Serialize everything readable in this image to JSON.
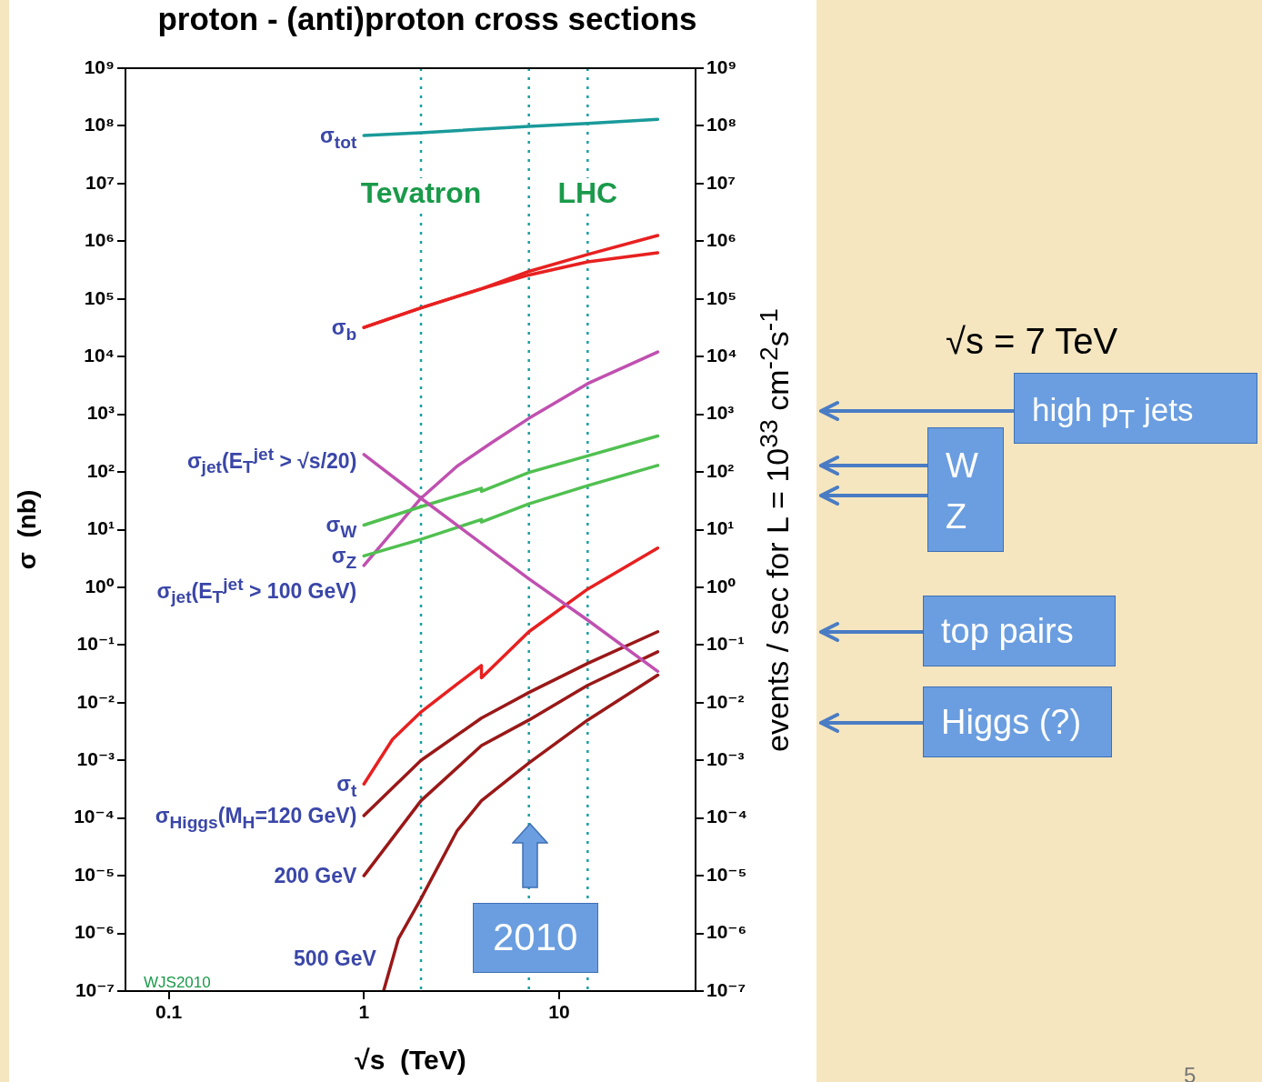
{
  "chart_data": {
    "type": "line",
    "title": "proton - (anti)proton cross sections",
    "xlabel": "√s  (TeV)",
    "ylabel": "σ  (nb)",
    "y2label": "events / sec for L = 10$^{33}$ cm$^{-2}$s$^{-1}$",
    "log": "xy",
    "legend": false,
    "marker": "none",
    "line_style": "solid",
    "xlim": [
      0.06,
      50
    ],
    "xticks": [
      0.1,
      1,
      10
    ],
    "ylim": [
      1e-07,
      1000000000.0
    ],
    "yticks": [
      {
        "value": 1e-07,
        "label": "10⁻⁷"
      },
      {
        "value": 1e-06,
        "label": "10⁻⁶"
      },
      {
        "value": 1e-05,
        "label": "10⁻⁵"
      },
      {
        "value": 0.0001,
        "label": "10⁻⁴"
      },
      {
        "value": 0.001,
        "label": "10⁻³"
      },
      {
        "value": 0.01,
        "label": "10⁻²"
      },
      {
        "value": 0.1,
        "label": "10⁻¹"
      },
      {
        "value": 1,
        "label": "10⁰"
      },
      {
        "value": 10,
        "label": "10¹"
      },
      {
        "value": 100,
        "label": "10²"
      },
      {
        "value": 1000,
        "label": "10³"
      },
      {
        "value": 10000.0,
        "label": "10⁴"
      },
      {
        "value": 100000.0,
        "label": "10⁵"
      },
      {
        "value": 1000000.0,
        "label": "10⁶"
      },
      {
        "value": 10000000.0,
        "label": "10⁷"
      },
      {
        "value": 100000000.0,
        "label": "10⁸"
      },
      {
        "value": 1000000000.0,
        "label": "10⁹"
      }
    ],
    "series": [
      {
        "name": "σ$_{tot}$",
        "color": "#1a9a9a",
        "x": [
          1,
          1.96,
          7,
          14,
          32
        ],
        "values": [
          68000000.0,
          76000000.0,
          98000000.0,
          110000000.0,
          130000000.0
        ]
      },
      {
        "name": "σ$_{b}$",
        "color": "#e82020",
        "x": [
          1,
          1.96,
          4,
          7,
          14,
          32
        ],
        "values": [
          32000.0,
          70000.0,
          150000.0,
          300000.0,
          590000.0,
          1260000.0
        ]
      },
      {
        "color": "#e82020",
        "x": [
          1,
          1.96,
          4,
          7,
          14,
          32
        ],
        "values": [
          32000.0,
          70000.0,
          150000.0,
          260000.0,
          440000.0,
          630000.0
        ]
      },
      {
        "name": "σ$_{jet}$(E$_{T}$$^{jet}$ > √s/20)",
        "color": "#c050b0",
        "x": [
          1,
          1.96,
          7,
          14,
          32
        ],
        "values": [
          200,
          35,
          1.4,
          0.27,
          0.035
        ]
      },
      {
        "name": "σ$_{W}$",
        "color": "#50c050",
        "x": [
          1,
          1.96,
          4,
          4,
          7,
          14,
          32
        ],
        "values": [
          12,
          25,
          52,
          46,
          98,
          190,
          420
        ]
      },
      {
        "name": "σ$_{Z}$",
        "color": "#50c050",
        "x": [
          1,
          1.96,
          4,
          4,
          7,
          14,
          32
        ],
        "values": [
          3.5,
          6.8,
          15,
          13.5,
          28,
          58,
          130
        ]
      },
      {
        "name": "σ$_{jet}$(E$_{T}$$^{jet}$ > 100 GeV)",
        "color": "#c050b0",
        "x": [
          1,
          1.96,
          3,
          4.5,
          7,
          14,
          32
        ],
        "values": [
          2.4,
          35,
          126,
          320,
          850,
          3400,
          12000
        ]
      },
      {
        "name": "σ$_{t}$",
        "color": "#e82020",
        "x": [
          1,
          1.4,
          1.96,
          3,
          4,
          4,
          7,
          14,
          32
        ],
        "values": [
          0.00039,
          0.0023,
          0.0069,
          0.021,
          0.044,
          0.027,
          0.17,
          0.93,
          4.8
        ]
      },
      {
        "name": "σ$_{Higgs}$(M$_{H}$=120 GeV)",
        "color": "#9a1818",
        "x": [
          1,
          1.96,
          4,
          7,
          14,
          32
        ],
        "values": [
          0.00011,
          0.001,
          0.0054,
          0.015,
          0.048,
          0.17
        ]
      },
      {
        "name": "200 GeV",
        "color": "#9a1818",
        "x": [
          1,
          1.96,
          4,
          7,
          14,
          32
        ],
        "values": [
          1e-05,
          0.0002,
          0.0018,
          0.005,
          0.02,
          0.076
        ]
      },
      {
        "name": "500 GeV",
        "color": "#9a1818",
        "x": [
          1.26,
          1.5,
          1.96,
          3,
          4,
          7,
          14,
          32
        ],
        "values": [
          1e-07,
          8e-07,
          4e-06,
          6e-05,
          0.0002,
          0.0009,
          0.005,
          0.03
        ]
      }
    ],
    "ref_lines": [
      {
        "axis": "x",
        "value": 1.96,
        "label": "Tevatron",
        "color": "#1aa0a0",
        "line_style": "dotted"
      },
      {
        "axis": "x",
        "value": 7,
        "color": "#1aa0a0",
        "line_style": "dotted"
      },
      {
        "axis": "x",
        "value": 14,
        "label": "LHC",
        "color": "#1aa0a0",
        "line_style": "dotted"
      }
    ],
    "annotations": [
      "WJS2010",
      "√s = 7 TeV",
      "5",
      "high p$_{T}$ jets",
      "W",
      "Z",
      "top pairs",
      "Higgs (?)",
      "2010"
    ]
  }
}
